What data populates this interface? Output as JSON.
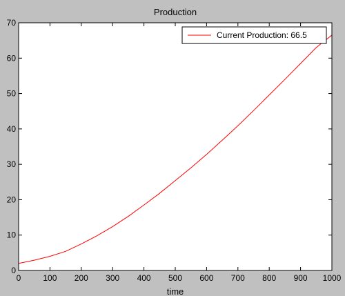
{
  "chart_data": {
    "type": "line",
    "title": "Production",
    "xlabel": "time",
    "ylabel": "",
    "xlim": [
      0,
      1000
    ],
    "ylim": [
      0,
      70
    ],
    "xticks": [
      0,
      100,
      200,
      300,
      400,
      500,
      600,
      700,
      800,
      900,
      1000
    ],
    "yticks": [
      0,
      10,
      20,
      30,
      40,
      50,
      60,
      70
    ],
    "grid": false,
    "legend_position": "top-right",
    "background_color": "#c0c0c0",
    "plot_color": "#ffffff",
    "series": [
      {
        "name": "Current Production: 66.5",
        "color": "#ff0000",
        "x": [
          0,
          50,
          100,
          150,
          200,
          250,
          300,
          350,
          400,
          450,
          500,
          550,
          600,
          650,
          700,
          750,
          800,
          850,
          900,
          950,
          1000
        ],
        "y": [
          2.0,
          2.9,
          4.0,
          5.4,
          7.5,
          9.8,
          12.4,
          15.3,
          18.5,
          21.8,
          25.4,
          29.0,
          32.8,
          36.8,
          40.9,
          45.2,
          49.6,
          54.0,
          58.5,
          63.0,
          66.5
        ]
      }
    ]
  }
}
